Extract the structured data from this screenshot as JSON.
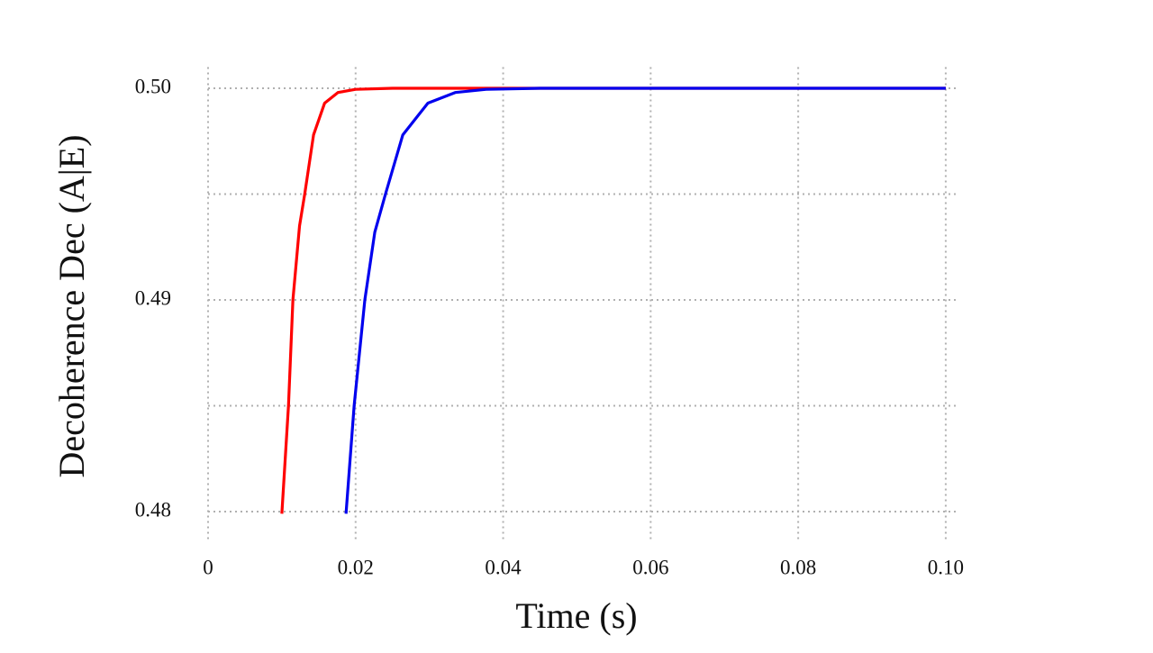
{
  "chart_data": {
    "type": "line",
    "x_label": "Time (s)",
    "y_label": "Decoherence Dec (A|E)",
    "xlim": [
      0,
      0.1016
    ],
    "ylim": [
      0.479,
      0.501
    ],
    "xticks": [
      0,
      0.02,
      0.04,
      0.06,
      0.08,
      {
        "value": 0.1,
        "label": "0.10"
      }
    ],
    "yticks": [
      0.48,
      0.49,
      {
        "value": 0.5,
        "label": "0.50"
      }
    ],
    "yminor": [
      0.485,
      0.495
    ],
    "grid": true,
    "series": [
      {
        "color": "#ff0000",
        "x": [
          0.01,
          0.0109,
          0.0115,
          0.0124,
          0.0131,
          0.0143,
          0.0158,
          0.0176,
          0.02,
          0.025,
          0.1
        ],
        "values": [
          0.4799,
          0.485,
          0.49,
          0.4935,
          0.495,
          0.4978,
          0.4993,
          0.4998,
          0.49995,
          0.5,
          0.5
        ]
      },
      {
        "color": "#0000ee",
        "x": [
          0.0187,
          0.0198,
          0.02125,
          0.0226,
          0.02405,
          0.0264,
          0.0298,
          0.0335,
          0.0377,
          0.045,
          0.1
        ],
        "values": [
          0.4799,
          0.485,
          0.49,
          0.4932,
          0.495,
          0.4978,
          0.4993,
          0.4998,
          0.49995,
          0.5,
          0.5
        ]
      }
    ]
  }
}
